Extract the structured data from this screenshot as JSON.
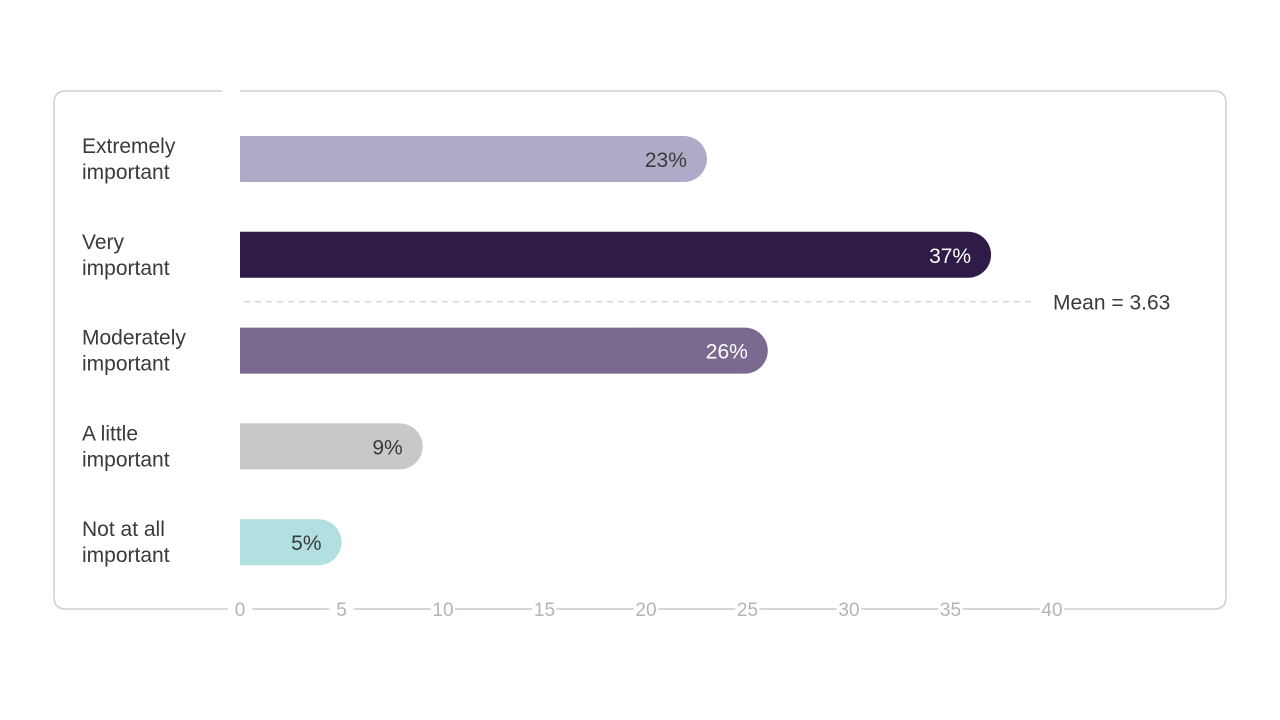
{
  "chart_data": {
    "type": "bar",
    "orientation": "horizontal",
    "categories": [
      [
        "Extremely",
        "important"
      ],
      [
        "Very",
        "important"
      ],
      [
        "Moderately",
        "important"
      ],
      [
        "A little",
        "important"
      ],
      [
        "Not at all",
        "important"
      ]
    ],
    "values": [
      23,
      37,
      26,
      9,
      5
    ],
    "value_labels": [
      "23%",
      "37%",
      "26%",
      "9%",
      "5%"
    ],
    "bar_colors": [
      "#afaac8",
      "#2e1b48",
      "#7b6a8f",
      "#c8c8c8",
      "#b2dfe0"
    ],
    "value_label_colors": [
      "#3a3a3a",
      "#ffffff",
      "#ffffff",
      "#3a3a3a",
      "#3a3a3a"
    ],
    "x_ticks": [
      0,
      5,
      10,
      15,
      20,
      25,
      30,
      35,
      40
    ],
    "x_tick_labels": [
      "0",
      "5",
      "10",
      "15",
      "20",
      "25",
      "30",
      "35",
      "40"
    ],
    "xlim": [
      0,
      40
    ],
    "mean_label": "Mean = 3.63",
    "title": "",
    "xlabel": "",
    "ylabel": "",
    "legend": "none"
  }
}
